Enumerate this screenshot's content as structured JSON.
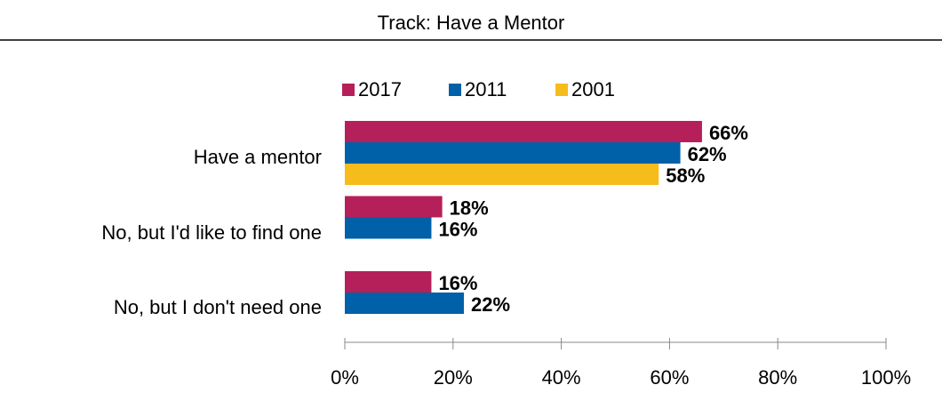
{
  "chart_data": {
    "type": "bar",
    "orientation": "horizontal",
    "title": "Track: Have a Mentor",
    "categories": [
      "Have a mentor",
      "No, but I'd like to find one",
      "No, but I don't need one"
    ],
    "series": [
      {
        "name": "2017",
        "color": "#b5205a",
        "values": [
          66,
          18,
          16
        ],
        "value_labels": [
          "66%",
          "18%",
          "16%"
        ]
      },
      {
        "name": "2011",
        "color": "#0060a8",
        "values": [
          62,
          16,
          22
        ],
        "value_labels": [
          "62%",
          "16%",
          "22%"
        ]
      },
      {
        "name": "2001",
        "color": "#f5bc1c",
        "values": [
          58,
          null,
          null
        ],
        "value_labels": [
          "58%",
          null,
          null
        ]
      }
    ],
    "xlim": [
      0,
      100
    ],
    "xticks": [
      {
        "value": 0,
        "label": "0%"
      },
      {
        "value": 20,
        "label": "20%"
      },
      {
        "value": 40,
        "label": "40%"
      },
      {
        "value": 60,
        "label": "60%"
      },
      {
        "value": 80,
        "label": "80%"
      },
      {
        "value": 100,
        "label": "100%"
      }
    ],
    "legend": "top"
  }
}
